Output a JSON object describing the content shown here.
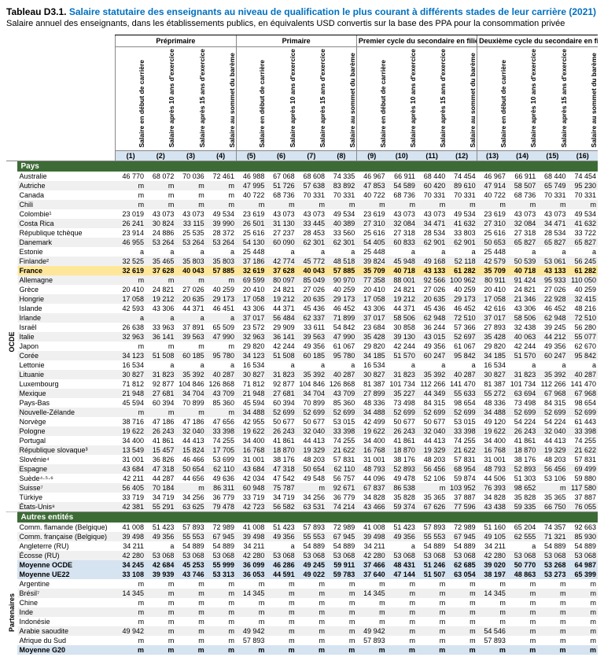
{
  "title_prefix": "Tableau D3.1. ",
  "title_main": "Salaire statutaire des enseignants au niveau de qualification le plus courant à différents stades de leur carrière (2021)",
  "subtitle": "Salaire annuel des enseignants, dans les établissements publics, en équivalents USD convertis sur la base des PPA pour la consommation privée",
  "groups": [
    "Préprimaire",
    "Primaire",
    "Premier cycle du secondaire en filière générale",
    "Deuxième cycle du secondaire en filière générale"
  ],
  "subheaders": [
    "Salaire en début de carrière",
    "Salaire après 10 ans d'exercice",
    "Salaire après 15 ans d'exercice",
    "Salaire au sommet du barème"
  ],
  "colnums": [
    "(1)",
    "(2)",
    "(3)",
    "(4)",
    "(5)",
    "(6)",
    "(7)",
    "(8)",
    "(9)",
    "(10)",
    "(11)",
    "(12)",
    "(13)",
    "(14)",
    "(15)",
    "(16)"
  ],
  "vert_labels": {
    "ocde": "OCDE",
    "partenaires": "Partenaires"
  },
  "sections": {
    "pays": "Pays",
    "autres": "Autres entités"
  },
  "rows_ocde": [
    {
      "n": "Australie",
      "v": [
        "46 770",
        "68 072",
        "70 036",
        "72 461",
        "46 988",
        "67 068",
        "68 608",
        "74 335",
        "46 967",
        "66 911",
        "68 440",
        "74 454",
        "46 967",
        "66 911",
        "68 440",
        "74 454"
      ]
    },
    {
      "n": "Autriche",
      "v": [
        "m",
        "m",
        "m",
        "m",
        "47 995",
        "51 726",
        "57 638",
        "83 892",
        "47 853",
        "54 589",
        "60 420",
        "89 610",
        "47 914",
        "58 507",
        "65 749",
        "95 230"
      ]
    },
    {
      "n": "Canada",
      "v": [
        "m",
        "m",
        "m",
        "m",
        "40 722",
        "68 736",
        "70 331",
        "70 331",
        "40 722",
        "68 736",
        "70 331",
        "70 331",
        "40 722",
        "68 736",
        "70 331",
        "70 331"
      ]
    },
    {
      "n": "Chili",
      "v": [
        "m",
        "m",
        "m",
        "m",
        "m",
        "m",
        "m",
        "m",
        "m",
        "m",
        "m",
        "m",
        "m",
        "m",
        "m",
        "m"
      ]
    },
    {
      "n": "Colombie¹",
      "v": [
        "23 019",
        "43 073",
        "43 073",
        "49 534",
        "23 619",
        "43 073",
        "43 073",
        "49 534",
        "23 619",
        "43 073",
        "43 073",
        "49 534",
        "23 619",
        "43 073",
        "43 073",
        "49 534"
      ]
    },
    {
      "n": "Costa Rica",
      "v": [
        "26 241",
        "30 824",
        "33 115",
        "39 990",
        "26 501",
        "31 130",
        "33 445",
        "40 389",
        "27 310",
        "32 084",
        "34 471",
        "41 632",
        "27 310",
        "32 084",
        "34 471",
        "41 632"
      ]
    },
    {
      "n": "République tchèque",
      "v": [
        "23 914",
        "24 886",
        "25 535",
        "28 372",
        "25 616",
        "27 237",
        "28 453",
        "33 560",
        "25 616",
        "27 318",
        "28 534",
        "33 803",
        "25 616",
        "27 318",
        "28 534",
        "33 722"
      ]
    },
    {
      "n": "Danemark",
      "v": [
        "46 955",
        "53 264",
        "53 264",
        "53 264",
        "54 130",
        "60 090",
        "62 301",
        "62 301",
        "54 405",
        "60 833",
        "62 901",
        "62 901",
        "50 653",
        "65 827",
        "65 827",
        "65 827"
      ]
    },
    {
      "n": "Estonie",
      "v": [
        "a",
        "a",
        "a",
        "a",
        "25 448",
        "a",
        "a",
        "a",
        "25 448",
        "a",
        "a",
        "a",
        "25 448",
        "a",
        "a",
        "a"
      ]
    },
    {
      "n": "Finlande²",
      "v": [
        "32 525",
        "35 465",
        "35 803",
        "35 803",
        "37 186",
        "42 774",
        "45 772",
        "48 518",
        "39 824",
        "45 948",
        "49 168",
        "52 118",
        "42 579",
        "50 539",
        "53 061",
        "56 245"
      ]
    },
    {
      "n": "France",
      "v": [
        "32 619",
        "37 628",
        "40 043",
        "57 885",
        "32 619",
        "37 628",
        "40 043",
        "57 885",
        "35 709",
        "40 718",
        "43 133",
        "61 282",
        "35 709",
        "40 718",
        "43 133",
        "61 282"
      ],
      "hl": true
    },
    {
      "n": "Allemagne",
      "v": [
        "m",
        "m",
        "m",
        "m",
        "69 599",
        "80 097",
        "85 049",
        "90 970",
        "77 358",
        "88 001",
        "92 566",
        "100 962",
        "80 911",
        "91 424",
        "95 933",
        "110 050"
      ]
    },
    {
      "n": "Grèce",
      "v": [
        "20 410",
        "24 821",
        "27 026",
        "40 259",
        "20 410",
        "24 821",
        "27 026",
        "40 259",
        "20 410",
        "24 821",
        "27 026",
        "40 259",
        "20 410",
        "24 821",
        "27 026",
        "40 259"
      ]
    },
    {
      "n": "Hongrie",
      "v": [
        "17 058",
        "19 212",
        "20 635",
        "29 173",
        "17 058",
        "19 212",
        "20 635",
        "29 173",
        "17 058",
        "19 212",
        "20 635",
        "29 173",
        "17 058",
        "21 346",
        "22 928",
        "32 415"
      ]
    },
    {
      "n": "Islande",
      "v": [
        "42 593",
        "43 306",
        "44 371",
        "46 451",
        "43 306",
        "44 371",
        "45 436",
        "46 452",
        "43 306",
        "44 371",
        "45 436",
        "46 452",
        "42 616",
        "43 306",
        "46 452",
        "48 216"
      ]
    },
    {
      "n": "Irlande",
      "v": [
        "a",
        "a",
        "a",
        "a",
        "37 017",
        "56 484",
        "62 337",
        "71 899",
        "37 017",
        "58 506",
        "62 948",
        "72 510",
        "37 017",
        "58 506",
        "62 948",
        "72 510"
      ]
    },
    {
      "n": "Israël",
      "v": [
        "26 638",
        "33 963",
        "37 891",
        "65 509",
        "23 572",
        "29 909",
        "33 611",
        "54 842",
        "23 684",
        "30 858",
        "36 244",
        "57 366",
        "27 893",
        "32 438",
        "39 245",
        "56 280"
      ]
    },
    {
      "n": "Italie",
      "v": [
        "32 963",
        "36 141",
        "39 563",
        "47 990",
        "32 963",
        "36 141",
        "39 563",
        "47 990",
        "35 428",
        "39 130",
        "43 015",
        "52 697",
        "35 428",
        "40 063",
        "44 212",
        "55 077"
      ]
    },
    {
      "n": "Japon",
      "v": [
        "m",
        "m",
        "m",
        "m",
        "29 820",
        "42 244",
        "49 356",
        "61 067",
        "29 820",
        "42 244",
        "49 356",
        "61 067",
        "29 820",
        "42 244",
        "49 356",
        "62 670"
      ]
    },
    {
      "n": "Corée",
      "v": [
        "34 123",
        "51 508",
        "60 185",
        "95 780",
        "34 123",
        "51 508",
        "60 185",
        "95 780",
        "34 185",
        "51 570",
        "60 247",
        "95 842",
        "34 185",
        "51 570",
        "60 247",
        "95 842"
      ]
    },
    {
      "n": "Lettonie",
      "v": [
        "16 534",
        "a",
        "a",
        "a",
        "16 534",
        "a",
        "a",
        "a",
        "16 534",
        "a",
        "a",
        "a",
        "16 534",
        "a",
        "a",
        "a"
      ]
    },
    {
      "n": "Lituanie",
      "v": [
        "30 827",
        "31 823",
        "35 392",
        "40 287",
        "30 827",
        "31 823",
        "35 392",
        "40 287",
        "30 827",
        "31 823",
        "35 392",
        "40 287",
        "30 827",
        "31 823",
        "35 392",
        "40 287"
      ]
    },
    {
      "n": "Luxembourg",
      "v": [
        "71 812",
        "92 877",
        "104 846",
        "126 868",
        "71 812",
        "92 877",
        "104 846",
        "126 868",
        "81 387",
        "101 734",
        "112 266",
        "141 470",
        "81 387",
        "101 734",
        "112 266",
        "141 470"
      ]
    },
    {
      "n": "Mexique",
      "v": [
        "21 948",
        "27 681",
        "34 704",
        "43 709",
        "21 948",
        "27 681",
        "34 704",
        "43 709",
        "27 899",
        "35 227",
        "44 349",
        "55 633",
        "55 272",
        "63 694",
        "67 968",
        "67 968"
      ]
    },
    {
      "n": "Pays-Bas",
      "v": [
        "45 594",
        "60 394",
        "70 899",
        "85 360",
        "45 594",
        "60 394",
        "70 899",
        "85 360",
        "48 336",
        "73 498",
        "84 315",
        "98 654",
        "48 336",
        "73 498",
        "84 315",
        "98 654"
      ]
    },
    {
      "n": "Nouvelle-Zélande",
      "v": [
        "m",
        "m",
        "m",
        "m",
        "34 488",
        "52 699",
        "52 699",
        "52 699",
        "34 488",
        "52 699",
        "52 699",
        "52 699",
        "34 488",
        "52 699",
        "52 699",
        "52 699"
      ]
    },
    {
      "n": "Norvège",
      "v": [
        "38 716",
        "47 186",
        "47 186",
        "47 656",
        "42 955",
        "50 677",
        "50 677",
        "53 015",
        "42 499",
        "50 677",
        "50 677",
        "53 015",
        "49 120",
        "54 224",
        "54 224",
        "61 443"
      ]
    },
    {
      "n": "Pologne",
      "v": [
        "19 622",
        "26 243",
        "32 040",
        "33 398",
        "19 622",
        "26 243",
        "32 040",
        "33 398",
        "19 622",
        "26 243",
        "32 040",
        "33 398",
        "19 622",
        "26 243",
        "32 040",
        "33 398"
      ]
    },
    {
      "n": "Portugal",
      "v": [
        "34 400",
        "41 861",
        "44 413",
        "74 255",
        "34 400",
        "41 861",
        "44 413",
        "74 255",
        "34 400",
        "41 861",
        "44 413",
        "74 255",
        "34 400",
        "41 861",
        "44 413",
        "74 255"
      ]
    },
    {
      "n": "République slovaque³",
      "v": [
        "13 549",
        "15 457",
        "15 824",
        "17 705",
        "16 768",
        "18 870",
        "19 329",
        "21 622",
        "16 768",
        "18 870",
        "19 329",
        "21 622",
        "16 768",
        "18 870",
        "19 329",
        "21 622"
      ]
    },
    {
      "n": "Slovénie⁴",
      "v": [
        "31 001",
        "36 826",
        "46 466",
        "53 699",
        "31 001",
        "38 176",
        "48 203",
        "57 831",
        "31 001",
        "38 176",
        "48 203",
        "57 831",
        "31 001",
        "38 176",
        "48 203",
        "57 831"
      ]
    },
    {
      "n": "Espagne",
      "v": [
        "43 684",
        "47 318",
        "50 654",
        "62 110",
        "43 684",
        "47 318",
        "50 654",
        "62 110",
        "48 793",
        "52 893",
        "56 456",
        "68 954",
        "48 793",
        "52 893",
        "56 456",
        "69 499"
      ]
    },
    {
      "n": "Suède⁴·⁵·⁶",
      "v": [
        "42 211",
        "44 287",
        "44 656",
        "49 636",
        "42 034",
        "47 542",
        "49 548",
        "56 757",
        "44 096",
        "49 478",
        "52 106",
        "59 874",
        "44 506",
        "51 303",
        "53 106",
        "59 880"
      ]
    },
    {
      "n": "Suisse⁷",
      "v": [
        "56 405",
        "70 184",
        "m",
        "86 311",
        "60 948",
        "75 787",
        "m",
        "92 671",
        "67 837",
        "86 538",
        "m",
        "103 952",
        "76 393",
        "98 652",
        "m",
        "117 580"
      ]
    },
    {
      "n": "Türkiye",
      "v": [
        "33 719",
        "34 719",
        "34 256",
        "36 779",
        "33 719",
        "34 719",
        "34 256",
        "36 779",
        "34 828",
        "35 828",
        "35 365",
        "37 887",
        "34 828",
        "35 828",
        "35 365",
        "37 887"
      ]
    },
    {
      "n": "États-Unis⁸",
      "v": [
        "42 381",
        "55 291",
        "63 625",
        "79 478",
        "42 723",
        "56 582",
        "63 531",
        "74 214",
        "43 466",
        "59 374",
        "67 626",
        "77 596",
        "43 438",
        "59 335",
        "66 750",
        "76 055"
      ]
    }
  ],
  "rows_autres": [
    {
      "n": "Comm. flamande (Belgique)",
      "v": [
        "41 008",
        "51 423",
        "57 893",
        "72 989",
        "41 008",
        "51 423",
        "57 893",
        "72 989",
        "41 008",
        "51 423",
        "57 893",
        "72 989",
        "51 160",
        "65 204",
        "74 357",
        "92 663"
      ]
    },
    {
      "n": "Comm. française (Belgique)",
      "v": [
        "39 498",
        "49 356",
        "55 553",
        "67 945",
        "39 498",
        "49 356",
        "55 553",
        "67 945",
        "39 498",
        "49 356",
        "55 553",
        "67 945",
        "49 105",
        "62 555",
        "71 321",
        "85 930"
      ]
    },
    {
      "n": "Angleterre (RU)",
      "v": [
        "34 211",
        "a",
        "54 889",
        "54 889",
        "34 211",
        "a",
        "54 889",
        "54 889",
        "34 211",
        "a",
        "54 889",
        "54 889",
        "34 211",
        "a",
        "54 889",
        "54 889"
      ]
    },
    {
      "n": "Écosse (RU)",
      "v": [
        "42 280",
        "53 068",
        "53 068",
        "53 068",
        "42 280",
        "53 068",
        "53 068",
        "53 068",
        "42 280",
        "53 068",
        "53 068",
        "53 068",
        "42 280",
        "53 068",
        "53 068",
        "53 068"
      ]
    }
  ],
  "rows_avg": [
    {
      "n": "Moyenne OCDE",
      "v": [
        "34 245",
        "42 684",
        "45 253",
        "55 999",
        "36 099",
        "46 286",
        "49 245",
        "59 911",
        "37 466",
        "48 431",
        "51 246",
        "62 685",
        "39 020",
        "50 770",
        "53 268",
        "64 987"
      ]
    },
    {
      "n": "Moyenne UE22",
      "v": [
        "33 108",
        "39 939",
        "43 746",
        "53 313",
        "36 053",
        "44 591",
        "49 022",
        "59 783",
        "37 640",
        "47 144",
        "51 507",
        "63 054",
        "38 197",
        "48 863",
        "53 273",
        "65 399"
      ]
    }
  ],
  "rows_part": [
    {
      "n": "Argentine",
      "v": [
        "m",
        "m",
        "m",
        "m",
        "m",
        "m",
        "m",
        "m",
        "m",
        "m",
        "m",
        "m",
        "m",
        "m",
        "m",
        "m"
      ]
    },
    {
      "n": "Brésil⁷",
      "v": [
        "14 345",
        "m",
        "m",
        "m",
        "14 345",
        "m",
        "m",
        "m",
        "14 345",
        "m",
        "m",
        "m",
        "14 345",
        "m",
        "m",
        "m"
      ]
    },
    {
      "n": "Chine",
      "v": [
        "m",
        "m",
        "m",
        "m",
        "m",
        "m",
        "m",
        "m",
        "m",
        "m",
        "m",
        "m",
        "m",
        "m",
        "m",
        "m"
      ]
    },
    {
      "n": "Inde",
      "v": [
        "m",
        "m",
        "m",
        "m",
        "m",
        "m",
        "m",
        "m",
        "m",
        "m",
        "m",
        "m",
        "m",
        "m",
        "m",
        "m"
      ]
    },
    {
      "n": "Indonésie",
      "v": [
        "m",
        "m",
        "m",
        "m",
        "m",
        "m",
        "m",
        "m",
        "m",
        "m",
        "m",
        "m",
        "m",
        "m",
        "m",
        "m"
      ]
    },
    {
      "n": "Arabie saoudite",
      "v": [
        "49 942",
        "m",
        "m",
        "m",
        "49 942",
        "m",
        "m",
        "m",
        "49 942",
        "m",
        "m",
        "m",
        "54 546",
        "m",
        "m",
        "m"
      ]
    },
    {
      "n": "Afrique du Sud",
      "v": [
        "m",
        "m",
        "m",
        "m",
        "57 893",
        "m",
        "m",
        "m",
        "57 893",
        "m",
        "m",
        "m",
        "57 893",
        "m",
        "m",
        "m"
      ]
    }
  ],
  "row_g20": {
    "n": "Moyenne G20",
    "v": [
      "m",
      "m",
      "m",
      "m",
      "m",
      "m",
      "m",
      "m",
      "m",
      "m",
      "m",
      "m",
      "m",
      "m",
      "m",
      "m"
    ]
  }
}
